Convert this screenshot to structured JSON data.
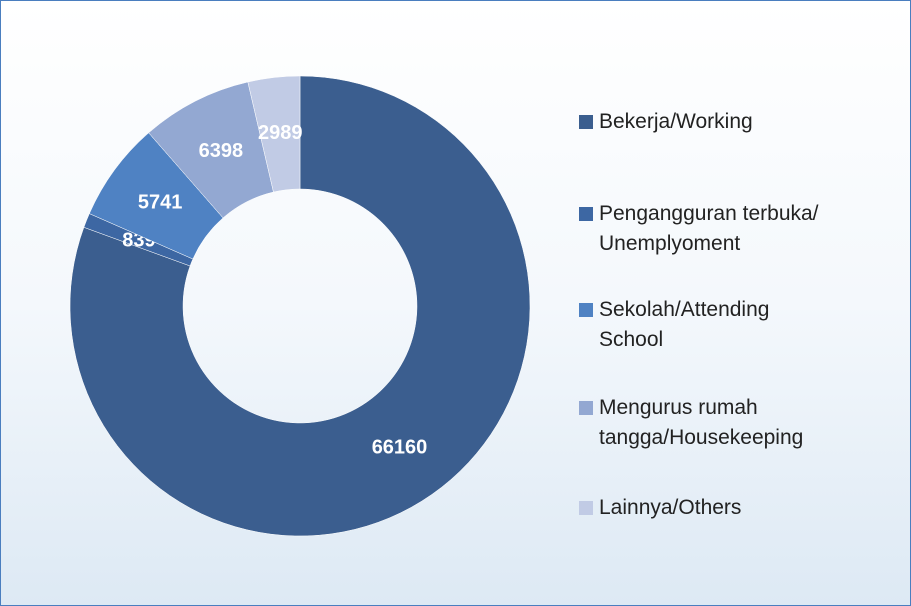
{
  "chart_data": {
    "type": "donut",
    "categories": [
      "Bekerja/Working",
      "Pengangguran terbuka/ Unemplyoment",
      "Sekolah/Attending School",
      "Mengurus rumah tangga/Housekeeping",
      "Lainnya/Others"
    ],
    "values": [
      66160,
      839,
      5741,
      6398,
      2989
    ],
    "colors": [
      "#3b5e8f",
      "#3d67a3",
      "#4f82c3",
      "#93a8d2",
      "#c1cbe5"
    ],
    "legend": "right"
  }
}
